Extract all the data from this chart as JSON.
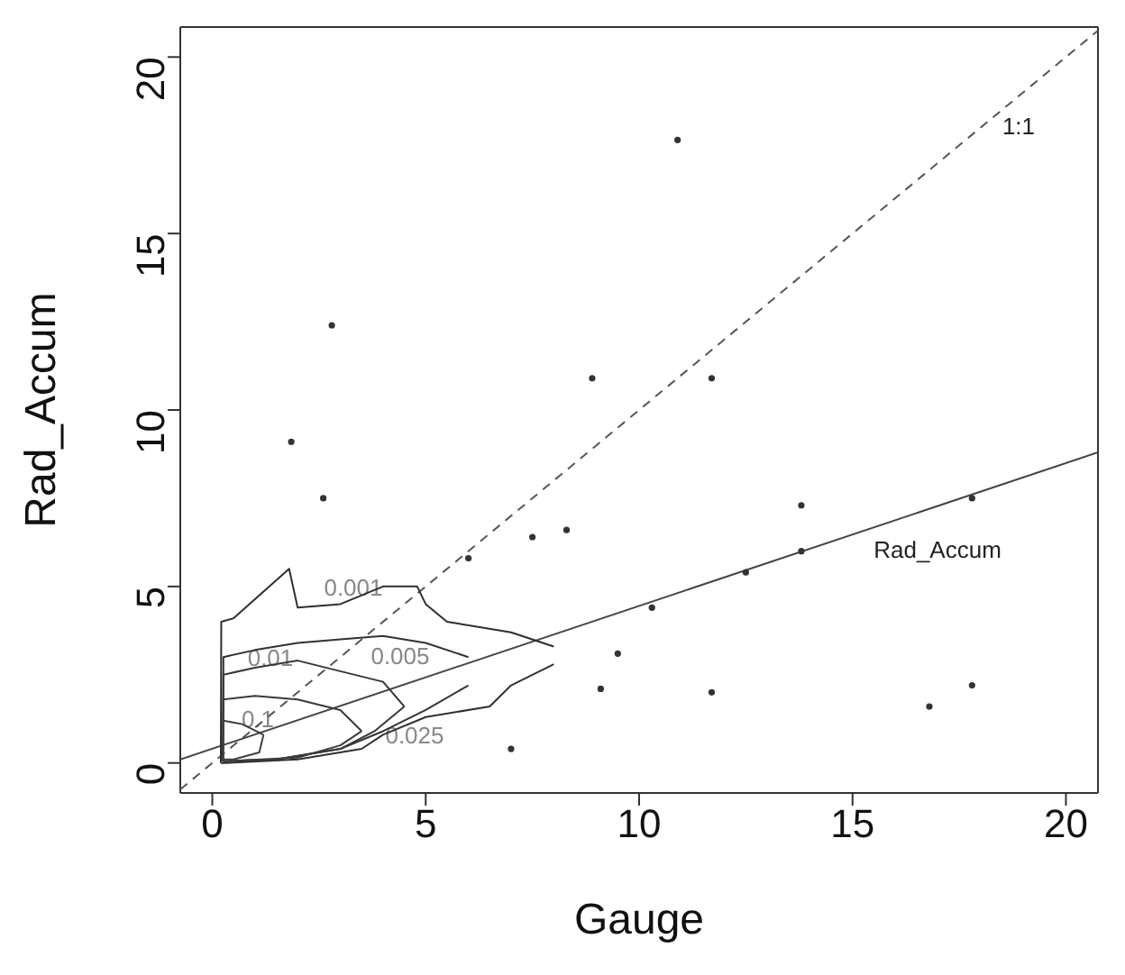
{
  "chart_data": {
    "type": "scatter",
    "xlabel": "Gauge",
    "ylabel": "Rad_Accum",
    "xlim": [
      -0.75,
      20.75
    ],
    "ylim": [
      -0.85,
      20.85
    ],
    "xticks": [
      0,
      5,
      10,
      15,
      20
    ],
    "yticks": [
      0,
      5,
      10,
      15,
      20
    ],
    "series": [
      {
        "type": "line",
        "color": "#555555",
        "line_style": "dashed",
        "marker": "none",
        "x": [
          -0.75,
          20.75
        ],
        "values": [
          -0.75,
          20.75
        ]
      },
      {
        "type": "line",
        "color": "#444444",
        "line_style": "solid",
        "marker": "none",
        "x": [
          -0.75,
          20.75
        ],
        "values": [
          0.1,
          8.8
        ]
      },
      {
        "type": "line",
        "color": "#2e2e2e",
        "line_style": "solid",
        "marker": "none",
        "x": [
          0.2,
          0.21,
          0.5,
          1.8,
          2,
          3,
          4,
          4.8,
          5,
          5.5,
          7,
          8
        ],
        "values": [
          0,
          4,
          4.1,
          5.5,
          4.4,
          4.5,
          5,
          5,
          4.5,
          4,
          3.7,
          3.3
        ]
      },
      {
        "type": "line",
        "color": "#303030",
        "line_style": "solid",
        "marker": "none",
        "x": [
          0.2,
          0.3,
          2,
          3.5,
          4,
          5,
          6.5,
          7,
          8
        ],
        "values": [
          0,
          0,
          0.1,
          0.4,
          0.8,
          1.3,
          1.6,
          2.2,
          2.8
        ]
      },
      {
        "type": "line",
        "color": "#323232",
        "line_style": "solid",
        "marker": "none",
        "x": [
          0.25,
          0.26,
          1,
          2,
          3,
          4,
          5,
          6
        ],
        "values": [
          0.05,
          3,
          3.2,
          3.4,
          3.5,
          3.6,
          3.4,
          3
        ]
      },
      {
        "type": "line",
        "color": "#343434",
        "line_style": "solid",
        "marker": "none",
        "x": [
          0.25,
          0.3,
          1.5,
          3,
          4,
          5,
          6
        ],
        "values": [
          0.05,
          0.05,
          0.1,
          0.4,
          0.9,
          1.5,
          2.2
        ]
      },
      {
        "type": "line",
        "color": "#363636",
        "line_style": "solid",
        "marker": "none",
        "x": [
          0.25,
          0.26,
          1,
          2,
          3,
          4,
          4.5
        ],
        "values": [
          0.05,
          2.5,
          2.7,
          2.9,
          2.6,
          2.3,
          1.6
        ]
      },
      {
        "type": "line",
        "color": "#383838",
        "line_style": "solid",
        "marker": "none",
        "x": [
          0.25,
          0.3,
          1.5,
          3,
          3.8,
          4.5
        ],
        "values": [
          0.05,
          0.05,
          0.1,
          0.4,
          0.9,
          1.6
        ]
      },
      {
        "type": "line",
        "color": "#3a3a3a",
        "line_style": "solid",
        "marker": "none",
        "x": [
          0.25,
          0.26,
          1,
          2,
          3,
          3.5
        ],
        "values": [
          0.05,
          1.8,
          1.9,
          1.8,
          1.5,
          0.9
        ]
      },
      {
        "type": "line",
        "color": "#3c3c3c",
        "line_style": "solid",
        "marker": "none",
        "x": [
          0.25,
          0.3,
          2,
          3,
          3.5
        ],
        "values": [
          0.05,
          0.05,
          0.15,
          0.5,
          0.9
        ]
      },
      {
        "type": "line",
        "color": "#3e3e3e",
        "line_style": "solid",
        "marker": "none",
        "x": [
          0.25,
          0.26,
          0.7,
          1.2
        ],
        "values": [
          0.1,
          1.2,
          1.1,
          0.8
        ]
      },
      {
        "type": "line",
        "color": "#404040",
        "line_style": "solid",
        "marker": "none",
        "x": [
          0.25,
          0.5,
          1.1,
          1.2
        ],
        "values": [
          0.1,
          0.1,
          0.3,
          0.8
        ]
      },
      {
        "type": "scatter",
        "color": "#333333",
        "marker": "circle",
        "x": [
          10.9,
          1.85,
          8.9,
          2.8,
          11.7,
          2.6,
          13.8,
          17.8,
          16.8,
          17.8,
          12.5,
          13.8,
          10.3,
          9.5,
          11.7,
          9.1,
          7,
          6,
          7.5,
          8.3
        ],
        "values": [
          17.65,
          9.1,
          10.9,
          12.4,
          10.9,
          7.5,
          7.3,
          7.5,
          1.6,
          2.2,
          5.4,
          6,
          4.4,
          3.1,
          2,
          2.1,
          0.4,
          5.8,
          6.4,
          6.6
        ]
      }
    ],
    "annotations": [
      "1:1",
      "Rad_Accum",
      "0.001",
      "0.01",
      "0.005",
      "0.1",
      "0.025"
    ]
  }
}
